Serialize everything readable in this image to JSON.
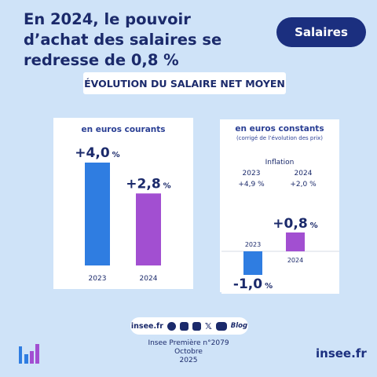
{
  "header": {
    "headline": "En 2024, le pouvoir d’achat des salaires se redresse de 0,8 %",
    "tag": "Salaires"
  },
  "banner": "ÉVOLUTION DU SALAIRE NET MOYEN",
  "chart_data": [
    {
      "type": "bar",
      "title": "en euros courants",
      "subtitle": "",
      "categories": [
        "2023",
        "2024"
      ],
      "values": [
        4.0,
        2.8
      ],
      "value_labels": [
        "+4,0",
        "+2,8"
      ],
      "unit": "%",
      "colors": [
        "#2f7de1",
        "#a24fd1"
      ],
      "ylim": [
        0,
        4.0
      ],
      "grid": false
    },
    {
      "type": "bar",
      "title": "en euros constants",
      "subtitle": "(corrigé de l’évolution des prix)",
      "categories": [
        "2023",
        "2024"
      ],
      "values": [
        -1.0,
        0.8
      ],
      "value_labels": [
        "-1,0",
        "+0,8"
      ],
      "unit": "%",
      "colors": [
        "#2f7de1",
        "#a24fd1"
      ],
      "ylim": [
        -1.0,
        0.8
      ],
      "grid": false,
      "inflation": {
        "label": "Inflation",
        "years": [
          "2023",
          "2024"
        ],
        "values": [
          "+4,9 %",
          "+2,0 %"
        ]
      }
    }
  ],
  "footer": {
    "site_short": "insee.fr",
    "social_icons": [
      "vimeo-icon",
      "instagram-icon",
      "linkedin-icon",
      "x-icon",
      "youtube-icon"
    ],
    "blog": "Blog",
    "publication": "Insee Première n°2079",
    "month": "Octobre",
    "year": "2025",
    "site": "insee.fr"
  },
  "colors": {
    "background": "#cfe3f8",
    "navy": "#1b2f7f",
    "blue_bar": "#2f7de1",
    "purple_bar": "#a24fd1"
  }
}
